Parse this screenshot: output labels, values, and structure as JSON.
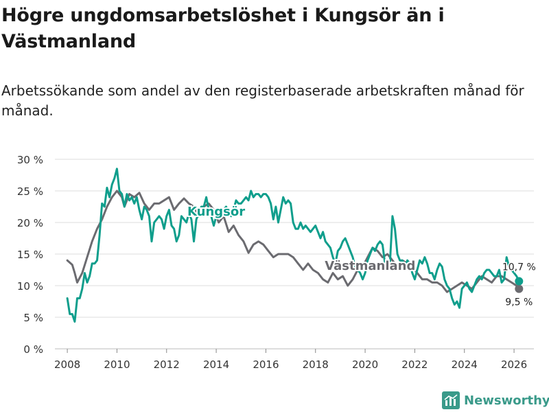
{
  "title": "Högre ungdomsarbetslöshet i Kungsör än i Västmanland",
  "subtitle": "Arbetssökande som andel av den registerbaserade arbetskraften månad för månad.",
  "brand": "Newsworthy",
  "colors": {
    "kungsor": "#0f9e8c",
    "vastmanland": "#6b6b70",
    "grid": "#dcdcdc",
    "text": "#333333"
  },
  "chart_data": {
    "type": "line",
    "title": "Högre ungdomsarbetslöshet i Kungsör än i Västmanland",
    "xlabel": "",
    "ylabel": "",
    "xlim": [
      2007.5,
      2026.8
    ],
    "ylim": [
      0,
      30
    ],
    "y_ticks": [
      0,
      5,
      10,
      15,
      20,
      25,
      30
    ],
    "y_tick_labels": [
      "0 %",
      "5 %",
      "10 %",
      "15 %",
      "20 %",
      "25 %",
      "30 %"
    ],
    "x_ticks": [
      2008,
      2010,
      2012,
      2014,
      2016,
      2018,
      2020,
      2022,
      2024,
      2026
    ],
    "x_tick_labels": [
      "2008",
      "2010",
      "2012",
      "2014",
      "2016",
      "2018",
      "2020",
      "2022",
      "2024",
      "2026"
    ],
    "series": [
      {
        "name": "Västmanland",
        "label": "Västmanland",
        "end_label": "9,5 %",
        "x": [
          2008.0,
          2008.2,
          2008.3,
          2008.4,
          2008.6,
          2008.8,
          2009.0,
          2009.2,
          2009.4,
          2009.6,
          2009.8,
          2010.0,
          2010.2,
          2010.3,
          2010.5,
          2010.7,
          2010.9,
          2011.1,
          2011.3,
          2011.5,
          2011.7,
          2011.9,
          2012.1,
          2012.3,
          2012.5,
          2012.7,
          2012.9,
          2013.1,
          2013.3,
          2013.5,
          2013.7,
          2013.9,
          2014.1,
          2014.3,
          2014.5,
          2014.7,
          2014.9,
          2015.1,
          2015.3,
          2015.5,
          2015.7,
          2015.9,
          2016.1,
          2016.3,
          2016.5,
          2016.7,
          2016.9,
          2017.1,
          2017.3,
          2017.5,
          2017.7,
          2017.9,
          2018.1,
          2018.3,
          2018.5,
          2018.7,
          2018.9,
          2019.1,
          2019.3,
          2019.5,
          2019.7,
          2019.9,
          2020.1,
          2020.3,
          2020.5,
          2020.7,
          2020.9,
          2021.1,
          2021.3,
          2021.5,
          2021.7,
          2021.9,
          2022.1,
          2022.3,
          2022.5,
          2022.7,
          2022.9,
          2023.1,
          2023.3,
          2023.5,
          2023.7,
          2023.9,
          2024.1,
          2024.3,
          2024.5,
          2024.7,
          2024.9,
          2025.1,
          2025.3,
          2025.5,
          2025.7,
          2025.9,
          2026.1,
          2026.2
        ],
        "values": [
          14.0,
          13.3,
          12.0,
          10.5,
          12.0,
          14.5,
          17.0,
          19.0,
          20.5,
          22.5,
          24.0,
          25.0,
          24.0,
          22.5,
          24.5,
          24.0,
          24.7,
          23.0,
          22.0,
          23.0,
          23.0,
          23.5,
          24.0,
          22.0,
          23.0,
          23.8,
          23.0,
          22.5,
          21.0,
          22.5,
          23.0,
          22.0,
          20.0,
          21.0,
          18.5,
          19.5,
          18.0,
          17.0,
          15.2,
          16.5,
          17.0,
          16.5,
          15.5,
          14.5,
          15.0,
          15.0,
          15.0,
          14.5,
          13.5,
          12.5,
          13.5,
          12.5,
          12.0,
          11.0,
          10.5,
          12.0,
          11.0,
          11.5,
          10.0,
          11.0,
          12.5,
          13.0,
          14.5,
          16.0,
          15.5,
          14.5,
          15.0,
          14.0,
          13.0,
          14.0,
          13.5,
          13.0,
          12.0,
          11.0,
          11.0,
          10.5,
          10.5,
          10.0,
          9.0,
          9.5,
          10.0,
          10.5,
          10.0,
          9.5,
          10.5,
          11.5,
          11.0,
          10.5,
          11.5,
          11.5,
          11.0,
          10.5,
          10.0,
          9.5
        ]
      },
      {
        "name": "Kungsör",
        "label": "Kungsör",
        "end_label": "10,7 %",
        "x": [
          2008.0,
          2008.1,
          2008.2,
          2008.3,
          2008.4,
          2008.5,
          2008.6,
          2008.7,
          2008.8,
          2008.9,
          2009.0,
          2009.1,
          2009.2,
          2009.3,
          2009.4,
          2009.5,
          2009.6,
          2009.7,
          2009.8,
          2009.9,
          2010.0,
          2010.1,
          2010.2,
          2010.3,
          2010.4,
          2010.5,
          2010.6,
          2010.7,
          2010.8,
          2010.9,
          2011.0,
          2011.1,
          2011.2,
          2011.3,
          2011.4,
          2011.5,
          2011.6,
          2011.7,
          2011.8,
          2011.9,
          2012.0,
          2012.1,
          2012.2,
          2012.3,
          2012.4,
          2012.5,
          2012.6,
          2012.7,
          2012.8,
          2012.9,
          2013.0,
          2013.1,
          2013.2,
          2013.3,
          2013.4,
          2013.5,
          2013.6,
          2013.7,
          2013.8,
          2013.9,
          2014.0,
          2014.1,
          2014.2,
          2014.3,
          2014.4,
          2014.5,
          2014.6,
          2014.7,
          2014.8,
          2014.9,
          2015.0,
          2015.1,
          2015.2,
          2015.3,
          2015.4,
          2015.5,
          2015.6,
          2015.7,
          2015.8,
          2015.9,
          2016.0,
          2016.1,
          2016.2,
          2016.3,
          2016.4,
          2016.5,
          2016.6,
          2016.7,
          2016.8,
          2016.9,
          2017.0,
          2017.1,
          2017.2,
          2017.3,
          2017.4,
          2017.5,
          2017.6,
          2017.7,
          2017.8,
          2017.9,
          2018.0,
          2018.1,
          2018.2,
          2018.3,
          2018.4,
          2018.5,
          2018.6,
          2018.7,
          2018.8,
          2018.9,
          2019.0,
          2019.1,
          2019.2,
          2019.3,
          2019.4,
          2019.5,
          2019.6,
          2019.7,
          2019.8,
          2019.9,
          2020.0,
          2020.1,
          2020.2,
          2020.3,
          2020.4,
          2020.5,
          2020.6,
          2020.7,
          2020.8,
          2020.9,
          2021.0,
          2021.1,
          2021.2,
          2021.3,
          2021.4,
          2021.5,
          2021.6,
          2021.7,
          2021.8,
          2021.9,
          2022.0,
          2022.1,
          2022.2,
          2022.3,
          2022.4,
          2022.5,
          2022.6,
          2022.7,
          2022.8,
          2022.9,
          2023.0,
          2023.1,
          2023.2,
          2023.3,
          2023.4,
          2023.5,
          2023.6,
          2023.7,
          2023.8,
          2023.9,
          2024.0,
          2024.1,
          2024.2,
          2024.3,
          2024.4,
          2024.5,
          2024.6,
          2024.7,
          2024.8,
          2024.9,
          2025.0,
          2025.1,
          2025.2,
          2025.3,
          2025.4,
          2025.5,
          2025.6,
          2025.7,
          2025.8,
          2025.9,
          2026.0,
          2026.1,
          2026.2
        ],
        "values": [
          8.0,
          5.5,
          5.5,
          4.3,
          8.0,
          8.0,
          9.5,
          12.0,
          10.5,
          11.5,
          13.5,
          13.5,
          14.0,
          18.0,
          23.0,
          22.5,
          25.5,
          24.0,
          26.0,
          27.0,
          28.5,
          25.0,
          24.5,
          22.5,
          24.5,
          23.5,
          24.0,
          23.0,
          24.0,
          22.0,
          20.5,
          22.5,
          22.0,
          21.0,
          17.0,
          20.0,
          20.5,
          21.0,
          20.5,
          19.0,
          21.0,
          22.0,
          19.5,
          19.0,
          17.0,
          18.0,
          21.0,
          20.5,
          20.0,
          21.5,
          20.5,
          17.0,
          20.5,
          21.5,
          22.5,
          22.5,
          24.0,
          22.0,
          21.0,
          19.5,
          21.0,
          22.0,
          21.5,
          22.0,
          22.5,
          21.5,
          21.0,
          22.0,
          23.5,
          23.0,
          23.0,
          23.5,
          24.0,
          23.5,
          25.0,
          24.0,
          24.5,
          24.5,
          24.0,
          24.5,
          24.5,
          24.0,
          23.0,
          20.5,
          22.5,
          20.0,
          22.0,
          24.0,
          23.0,
          23.5,
          23.0,
          20.0,
          19.0,
          19.0,
          20.0,
          19.0,
          19.5,
          19.0,
          18.5,
          19.0,
          19.5,
          18.5,
          17.5,
          18.5,
          17.0,
          16.5,
          16.0,
          14.5,
          13.5,
          15.5,
          16.0,
          17.0,
          17.5,
          16.5,
          15.5,
          14.5,
          13.0,
          12.5,
          12.0,
          11.0,
          12.0,
          14.0,
          15.0,
          16.0,
          15.5,
          16.5,
          17.0,
          16.5,
          13.5,
          13.0,
          13.5,
          21.0,
          19.0,
          15.0,
          14.0,
          14.0,
          13.0,
          14.0,
          13.5,
          12.0,
          11.0,
          12.5,
          14.0,
          13.5,
          14.5,
          13.5,
          12.0,
          12.0,
          11.0,
          12.5,
          13.5,
          13.0,
          11.0,
          10.0,
          9.5,
          8.0,
          7.0,
          7.5,
          6.5,
          9.5,
          10.0,
          10.5,
          9.5,
          9.0,
          10.0,
          11.0,
          11.5,
          11.0,
          12.0,
          12.5,
          12.5,
          12.0,
          11.5,
          11.5,
          12.5,
          10.5,
          11.0,
          14.5,
          13.0,
          12.5,
          12.0,
          11.5,
          10.7
        ]
      }
    ]
  }
}
